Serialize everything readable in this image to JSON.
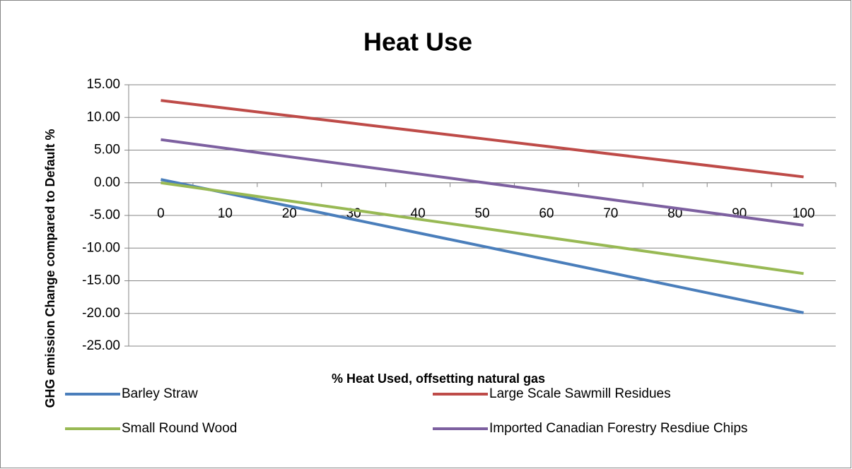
{
  "chart_data": {
    "type": "line",
    "title": "Heat Use",
    "x_label": "% Heat Used, offsetting natural gas",
    "y_label": "GHG emission  Change compared to Default %",
    "categories": [
      "0",
      "10",
      "20",
      "30",
      "40",
      "50",
      "60",
      "70",
      "80",
      "90",
      "100"
    ],
    "series": [
      {
        "name": "Barley Straw",
        "color": "#4a7ebb",
        "values": [
          0.5,
          -1.54,
          -3.58,
          -5.62,
          -7.66,
          -9.7,
          -11.74,
          -13.78,
          -15.82,
          -17.86,
          -19.9
        ]
      },
      {
        "name": "Large Scale Sawmill Residues",
        "color": "#be4b48",
        "values": [
          12.6,
          11.43,
          10.26,
          9.09,
          7.92,
          6.75,
          5.58,
          4.41,
          3.24,
          2.07,
          0.9
        ]
      },
      {
        "name": "Small Round Wood",
        "color": "#98b954",
        "values": [
          0,
          -1.39,
          -2.78,
          -4.17,
          -5.56,
          -6.95,
          -8.34,
          -9.73,
          -11.12,
          -12.51,
          -13.9
        ]
      },
      {
        "name": "Imported Canadian Forestry Resdiue Chips",
        "color": "#7d60a0",
        "values": [
          6.6,
          5.29,
          3.98,
          2.67,
          1.36,
          0.05,
          -1.26,
          -2.57,
          -3.88,
          -5.19,
          -6.5
        ]
      }
    ],
    "ylim": [
      -25,
      15
    ],
    "yticks": [
      {
        "value": -25,
        "label": "-25.00"
      },
      {
        "value": -20,
        "label": "-20.00"
      },
      {
        "value": -15,
        "label": "-15.00"
      },
      {
        "value": -10,
        "label": "-10.00"
      },
      {
        "value": -5,
        "label": "-5.00"
      },
      {
        "value": 0,
        "label": "0.00"
      },
      {
        "value": 5,
        "label": "5.00"
      },
      {
        "value": 10,
        "label": "10.00"
      },
      {
        "value": 15,
        "label": "15.00"
      }
    ],
    "grid": true,
    "legend": "bottom"
  }
}
